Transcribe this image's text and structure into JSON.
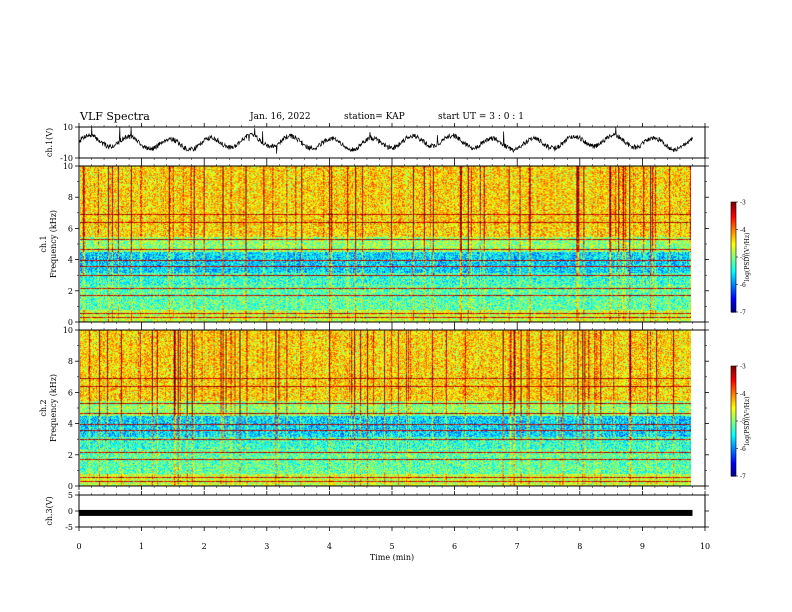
{
  "header": {
    "title": "VLF Spectra",
    "date": "Jan. 16, 2022",
    "station": "station= KAP",
    "start": "start  UT =   3 : 0  : 1"
  },
  "chart_data": [
    {
      "type": "line",
      "ylabel": "ch.1(V)",
      "ylim": [
        -10,
        10
      ],
      "yticks": [
        "10",
        "-10"
      ],
      "xlim": [
        0,
        10
      ],
      "x_end": 9.8,
      "note_waveform": "noisy wave oscillating within about -8 to +10 V"
    },
    {
      "type": "heatmap",
      "ylabel_lines": [
        "ch.1",
        "Frequency (kHz)"
      ],
      "ylim": [
        0,
        10
      ],
      "yticks": [
        "0",
        "2",
        "4",
        "6",
        "8",
        "10"
      ],
      "xlim": [
        0,
        10
      ],
      "colorbar": {
        "label": "log(PSD)(V²/Hz)",
        "range": [
          -7,
          -3
        ],
        "ticks": [
          "-3",
          "-4",
          "-5",
          "-6",
          "-7"
        ]
      }
    },
    {
      "type": "heatmap",
      "ylabel_lines": [
        "ch.2",
        "Frequency (kHz)"
      ],
      "ylim": [
        0,
        10
      ],
      "yticks": [
        "0",
        "2",
        "4",
        "6",
        "8",
        "10"
      ],
      "xlim": [
        0,
        10
      ],
      "colorbar": {
        "label": "log(PSD)(V²/Hz)",
        "range": [
          -7,
          -3
        ],
        "ticks": [
          "-3",
          "-4",
          "-5",
          "-6",
          "-7"
        ]
      }
    },
    {
      "type": "line",
      "ylabel": "ch.3(V)",
      "ylim": [
        -5,
        5
      ],
      "yticks": [
        "5",
        "0",
        "-5"
      ],
      "xlim": [
        0,
        10
      ],
      "x_end": 9.8,
      "constant_value": -0.6
    }
  ],
  "xaxis": {
    "label": "Time  (min)",
    "ticks": [
      "0",
      "1",
      "2",
      "3",
      "4",
      "5",
      "6",
      "7",
      "8",
      "9",
      "10"
    ]
  }
}
